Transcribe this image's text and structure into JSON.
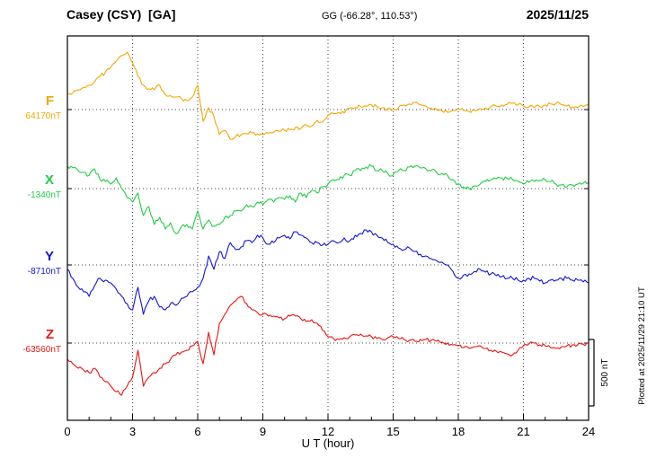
{
  "header": {
    "station_title": "Casey (CSY)  [GA]",
    "gg_coords": "GG (-66.28°, 110.53°)",
    "date": "2025/11/25"
  },
  "side_note": "Plotted at 2025/11/29 21:10 UT",
  "chart_data": {
    "type": "line",
    "title": "Casey (CSY) [GA] magnetogram 2025/11/25",
    "xlabel": "U T (hour)",
    "x_range": [
      0,
      24
    ],
    "x_step": 0.25,
    "x_ticks": [
      0,
      3,
      6,
      9,
      12,
      15,
      18,
      21,
      24
    ],
    "grid": "dotted vertical at 3h intervals, dotted horizontal at each component baseline",
    "scale_bar": {
      "label": "500 nT",
      "nT": 500
    },
    "series": [
      {
        "name": "F",
        "color": "#F2A800",
        "reference_label": "64170nT",
        "reference_nT": 64170,
        "noise_nT": 14,
        "offsets_nT": [
          110,
          120,
          143,
          160,
          176,
          200,
          240,
          270,
          305,
          350,
          390,
          415,
          340,
          240,
          176,
          150,
          143,
          176,
          110,
          100,
          91,
          78,
          65,
          91,
          176,
          -85,
          13,
          -52,
          -182,
          -150,
          -215,
          -195,
          -182,
          -175,
          -169,
          -175,
          -182,
          -170,
          -163,
          -158,
          -150,
          -145,
          -130,
          -135,
          -111,
          -120,
          -78,
          -90,
          -39,
          -30,
          -20,
          -25,
          7,
          15,
          20,
          25,
          33,
          20,
          13,
          5,
          0,
          15,
          33,
          40,
          52,
          35,
          26,
          10,
          0,
          -10,
          -20,
          -5,
          7,
          -5,
          -13,
          -5,
          7,
          12,
          20,
          25,
          33,
          38,
          46,
          35,
          26,
          18,
          13,
          22,
          33,
          40,
          46,
          35,
          26,
          18,
          13,
          22,
          33
        ]
      },
      {
        "name": "X",
        "color": "#22CC44",
        "reference_label": "-1340nT",
        "reference_nT": -1340,
        "noise_nT": 16,
        "offsets_nT": [
          162,
          150,
          130,
          117,
          97,
          143,
          65,
          52,
          32,
          78,
          0,
          -65,
          -97,
          -32,
          -195,
          -130,
          -260,
          -208,
          -292,
          -247,
          -325,
          -273,
          -260,
          -292,
          -162,
          -292,
          -227,
          -273,
          -260,
          -208,
          -195,
          -162,
          -162,
          -117,
          -130,
          -97,
          -117,
          -78,
          -97,
          -65,
          -78,
          -52,
          -97,
          -32,
          -65,
          -13,
          -32,
          13,
          32,
          65,
          65,
          97,
          97,
          130,
          130,
          156,
          162,
          130,
          130,
          110,
          97,
          130,
          130,
          156,
          162,
          150,
          143,
          130,
          117,
          110,
          97,
          65,
          32,
          13,
          0,
          20,
          32,
          52,
          65,
          72,
          78,
          72,
          65,
          52,
          32,
          46,
          52,
          59,
          65,
          52,
          32,
          26,
          13,
          26,
          32,
          39,
          46
        ]
      },
      {
        "name": "Y",
        "color": "#1414D6",
        "reference_label": "-8710nT",
        "reference_nT": -8710,
        "noise_nT": 16,
        "offsets_nT": [
          -32,
          -97,
          -162,
          -195,
          -227,
          -150,
          -97,
          -110,
          -130,
          -175,
          -227,
          -280,
          -325,
          -162,
          -357,
          -260,
          -227,
          -305,
          -325,
          -280,
          -292,
          -240,
          -227,
          -195,
          -162,
          -97,
          65,
          -32,
          97,
          46,
          162,
          110,
          130,
          175,
          162,
          215,
          195,
          150,
          162,
          195,
          215,
          188,
          240,
          215,
          195,
          162,
          162,
          143,
          150,
          175,
          162,
          195,
          175,
          215,
          227,
          253,
          240,
          215,
          195,
          162,
          150,
          123,
          110,
          123,
          97,
          78,
          65,
          46,
          32,
          20,
          0,
          -46,
          -97,
          -72,
          -65,
          -46,
          -32,
          -52,
          -65,
          -78,
          -85,
          -97,
          -97,
          -110,
          -110,
          -97,
          -97,
          -117,
          -130,
          -110,
          -110,
          -97,
          -97,
          -110,
          -110,
          -123,
          -130
        ]
      },
      {
        "name": "Z",
        "color": "#E81414",
        "reference_label": "-63560nT",
        "reference_nT": -63560,
        "noise_nT": 14,
        "offsets_nT": [
          -117,
          -150,
          -182,
          -195,
          -215,
          -182,
          -247,
          -280,
          -312,
          -351,
          -377,
          -312,
          -247,
          -52,
          -312,
          -247,
          -215,
          -182,
          -150,
          -117,
          -85,
          -65,
          -52,
          -20,
          13,
          -150,
          78,
          -85,
          143,
          208,
          273,
          305,
          338,
          286,
          240,
          221,
          208,
          195,
          195,
          182,
          176,
          195,
          195,
          176,
          156,
          169,
          143,
          91,
          46,
          33,
          26,
          39,
          46,
          59,
          65,
          52,
          46,
          33,
          26,
          39,
          46,
          33,
          26,
          20,
          13,
          26,
          26,
          20,
          13,
          7,
          0,
          -13,
          -20,
          -33,
          -39,
          -26,
          -20,
          -39,
          -52,
          -59,
          -65,
          -78,
          -85,
          -52,
          -20,
          -7,
          0,
          -13,
          -20,
          -33,
          -39,
          -26,
          -20,
          -13,
          -13,
          -7,
          0
        ]
      }
    ]
  }
}
